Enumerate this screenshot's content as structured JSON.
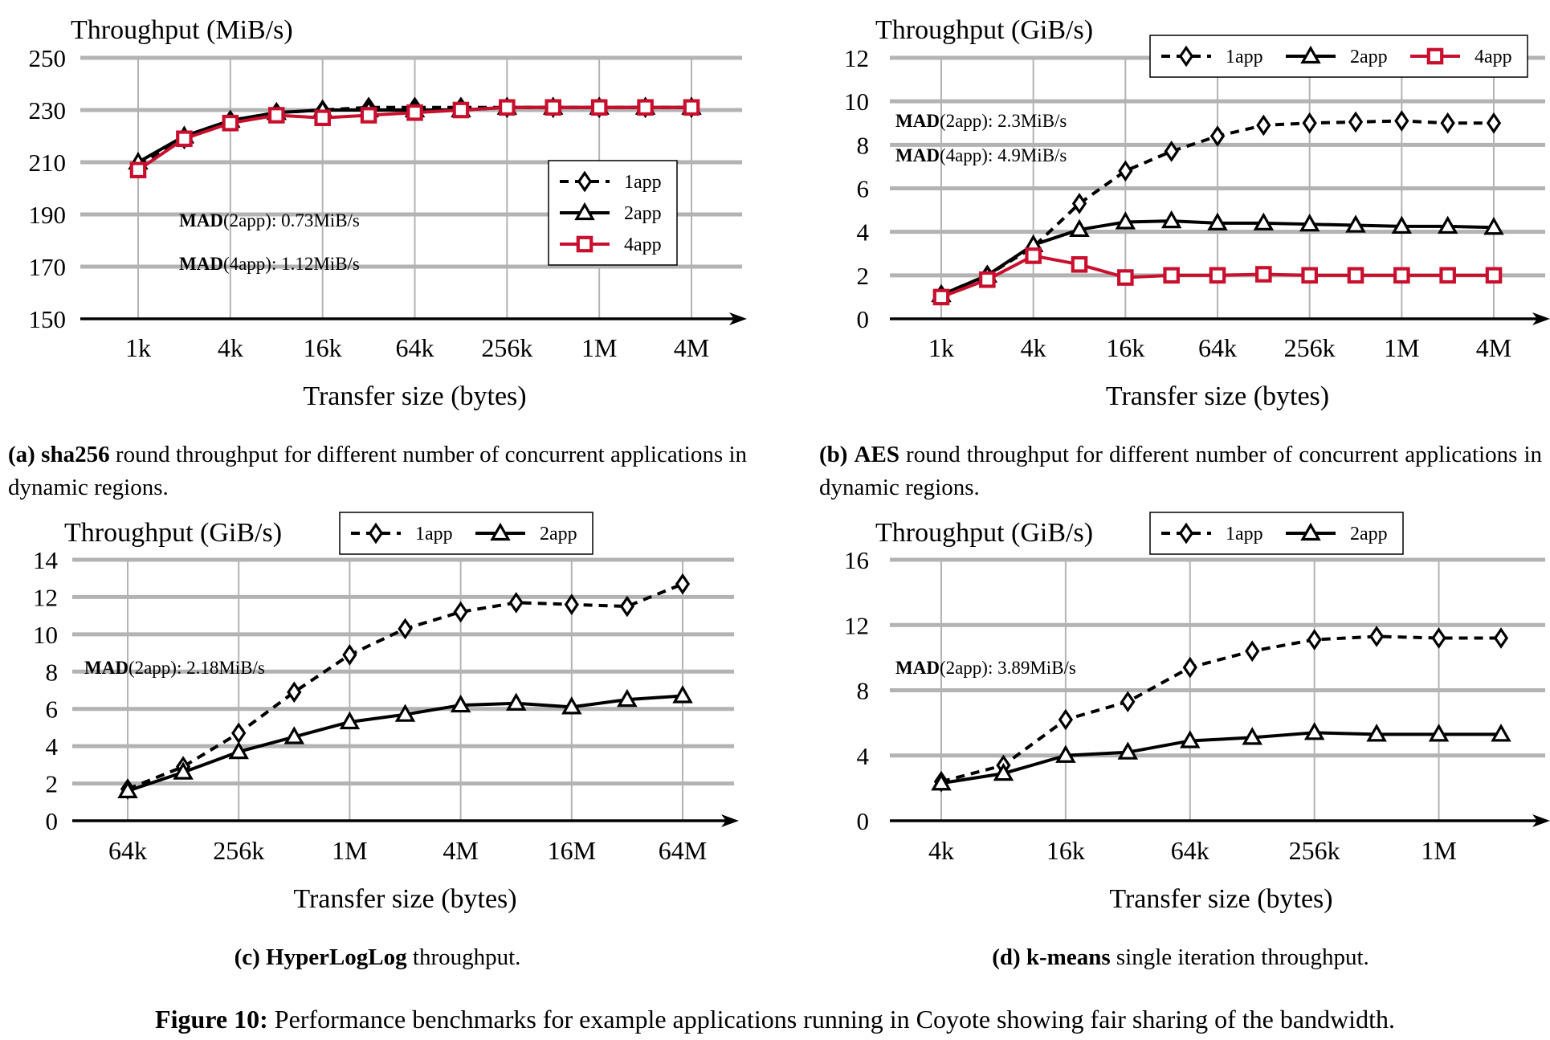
{
  "colors": {
    "grid": "#b3b3b3",
    "axis": "#000000",
    "series_1app": "#000000",
    "series_2app": "#000000",
    "series_4app": "#c8102e"
  },
  "chart_data": [
    {
      "id": "a",
      "type": "line",
      "ylabel": "Throughput (MiB/s)",
      "xlabel": "Transfer size (bytes)",
      "x_ticks": [
        "1k",
        "4k",
        "16k",
        "64k",
        "256k",
        "1M",
        "4M"
      ],
      "x_points": 13,
      "yticks": [
        150,
        170,
        190,
        210,
        230,
        250
      ],
      "ylim": [
        150,
        250
      ],
      "grid": true,
      "legend": "inside-right",
      "series": [
        {
          "name": "1app",
          "style": "dashed",
          "marker": "diamond",
          "values": [
            209,
            219,
            226,
            229,
            230,
            231,
            231,
            231,
            231,
            231,
            231,
            231,
            231
          ]
        },
        {
          "name": "2app",
          "style": "solid",
          "marker": "triangle",
          "values": [
            210,
            220,
            226,
            229,
            230,
            230,
            230,
            230,
            231,
            231,
            231,
            231,
            231
          ]
        },
        {
          "name": "4app",
          "style": "solid",
          "marker": "square",
          "values": [
            207,
            219,
            225,
            228,
            227,
            228,
            229,
            230,
            231,
            231,
            231,
            231,
            231
          ]
        }
      ],
      "annotations": [
        {
          "bold": "MAD",
          "text": "(2app): 0.73MiB/s"
        },
        {
          "bold": "MAD",
          "text": "(4app): 1.12MiB/s"
        }
      ]
    },
    {
      "id": "b",
      "type": "line",
      "ylabel": "Throughput (GiB/s)",
      "xlabel": "Transfer size (bytes)",
      "x_ticks": [
        "1k",
        "4k",
        "16k",
        "64k",
        "256k",
        "1M",
        "4M"
      ],
      "x_points": 13,
      "yticks": [
        0,
        2,
        4,
        6,
        8,
        10,
        12
      ],
      "ylim": [
        0,
        12
      ],
      "grid": true,
      "legend": "top",
      "series": [
        {
          "name": "1app",
          "style": "dashed",
          "marker": "diamond",
          "values": [
            1.1,
            2.0,
            3.3,
            5.3,
            6.8,
            7.7,
            8.4,
            8.9,
            9.0,
            9.05,
            9.1,
            9.0,
            9.0
          ]
        },
        {
          "name": "2app",
          "style": "solid",
          "marker": "triangle",
          "values": [
            1.1,
            2.0,
            3.4,
            4.1,
            4.45,
            4.5,
            4.4,
            4.4,
            4.35,
            4.3,
            4.25,
            4.25,
            4.2
          ]
        },
        {
          "name": "4app",
          "style": "solid",
          "marker": "square",
          "values": [
            1.0,
            1.8,
            2.9,
            2.5,
            1.9,
            2.0,
            2.0,
            2.05,
            2.0,
            2.0,
            2.0,
            2.0,
            2.0
          ]
        }
      ],
      "annotations": [
        {
          "bold": "MAD",
          "text": "(2app): 2.3MiB/s"
        },
        {
          "bold": "MAD",
          "text": "(4app): 4.9MiB/s"
        }
      ]
    },
    {
      "id": "c",
      "type": "line",
      "ylabel": "Throughput (GiB/s)",
      "xlabel": "Transfer size (bytes)",
      "x_ticks": [
        "64k",
        "256k",
        "1M",
        "4M",
        "16M",
        "64M"
      ],
      "x_points": 11,
      "yticks": [
        0,
        2,
        4,
        6,
        8,
        10,
        12,
        14
      ],
      "ylim": [
        0,
        14
      ],
      "grid": true,
      "legend": "top",
      "series": [
        {
          "name": "1app",
          "style": "dashed",
          "marker": "diamond",
          "values": [
            1.7,
            2.9,
            4.7,
            6.9,
            8.9,
            10.3,
            11.2,
            11.7,
            11.6,
            11.5,
            12.7
          ]
        },
        {
          "name": "2app",
          "style": "solid",
          "marker": "triangle",
          "values": [
            1.6,
            2.6,
            3.7,
            4.5,
            5.3,
            5.7,
            6.2,
            6.3,
            6.1,
            6.5,
            6.7
          ]
        }
      ],
      "annotations": [
        {
          "bold": "MAD",
          "text": "(2app): 2.18MiB/s"
        }
      ]
    },
    {
      "id": "d",
      "type": "line",
      "ylabel": "Throughput (GiB/s)",
      "xlabel": "Transfer size (bytes)",
      "x_ticks": [
        "4k",
        "16k",
        "64k",
        "256k",
        "1M"
      ],
      "x_points": 10,
      "yticks": [
        0,
        4,
        8,
        12,
        16
      ],
      "ylim": [
        0,
        16
      ],
      "grid": true,
      "legend": "top",
      "series": [
        {
          "name": "1app",
          "style": "dashed",
          "marker": "diamond",
          "values": [
            2.4,
            3.4,
            6.2,
            7.3,
            9.4,
            10.4,
            11.1,
            11.3,
            11.2,
            11.2
          ]
        },
        {
          "name": "2app",
          "style": "solid",
          "marker": "triangle",
          "values": [
            2.3,
            2.9,
            4.0,
            4.2,
            4.9,
            5.1,
            5.4,
            5.3,
            5.3,
            5.3
          ]
        }
      ],
      "annotations": [
        {
          "bold": "MAD",
          "text": "(2app): 3.89MiB/s"
        }
      ]
    }
  ],
  "captions": {
    "a": {
      "label": "(a)",
      "name": "sha256",
      "text": "round throughput for different number of concurrent applications in dynamic regions."
    },
    "b": {
      "label": "(b)",
      "name": "AES",
      "text": "round throughput for different number of concurrent applications in dynamic regions."
    },
    "c": {
      "label": "(c)",
      "name": "HyperLogLog",
      "text": "throughput."
    },
    "d": {
      "label": "(d)",
      "name": "k-means",
      "text": "single iteration throughput."
    }
  },
  "figure_caption": {
    "label": "Figure 10:",
    "text": "Performance benchmarks for example applications running in Coyote showing fair sharing of the bandwidth."
  }
}
